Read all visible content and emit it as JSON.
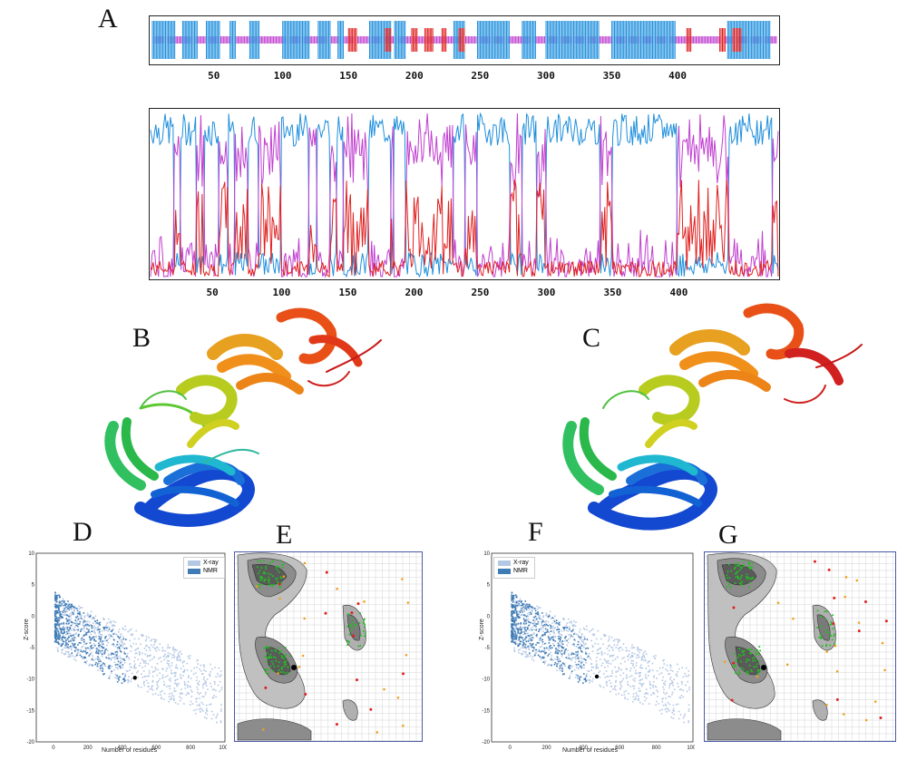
{
  "labels": {
    "A": "A",
    "B": "B",
    "C": "C",
    "D": "D",
    "E": "E",
    "F": "F",
    "G": "G"
  },
  "colors": {
    "helix": "#1f8fdc",
    "coil": "#c03fd0",
    "strand": "#e02020",
    "xray": "#b4c8e4",
    "nmr": "#3f7bb5"
  },
  "chart_data": [
    {
      "panel": "A-top",
      "type": "table",
      "xticks": [
        "50",
        "100",
        "150",
        "200",
        "250",
        "300",
        "350",
        "400"
      ],
      "xlim": [
        1,
        475
      ],
      "helix_segments": [
        [
          1,
          18
        ],
        [
          24,
          35
        ],
        [
          42,
          52
        ],
        [
          60,
          64
        ],
        [
          75,
          82
        ],
        [
          100,
          120
        ],
        [
          127,
          136
        ],
        [
          142,
          146
        ],
        [
          166,
          182
        ],
        [
          185,
          193
        ],
        [
          230,
          238
        ],
        [
          248,
          272
        ],
        [
          282,
          292
        ],
        [
          300,
          340
        ],
        [
          350,
          398
        ],
        [
          438,
          470
        ]
      ],
      "strand_segments": [
        [
          150,
          156
        ],
        [
          178,
          182
        ],
        [
          198,
          202
        ],
        [
          208,
          214
        ],
        [
          221,
          224
        ],
        [
          234,
          238
        ],
        [
          407,
          410
        ],
        [
          432,
          436
        ],
        [
          442,
          448
        ]
      ]
    },
    {
      "panel": "A-bottom",
      "type": "line",
      "xticks": [
        "50",
        "100",
        "150",
        "200",
        "250",
        "300",
        "350",
        "400"
      ],
      "xlim": [
        1,
        475
      ],
      "ylim": [
        0,
        1
      ],
      "series": [
        {
          "color": "#1f8fdc"
        },
        {
          "color": "#c03fd0"
        },
        {
          "color": "#e02020"
        }
      ]
    },
    {
      "panel": "D",
      "type": "scatter",
      "ylabel": "Z-score",
      "xlabel": "Number of residues",
      "xlim": [
        -100,
        1000
      ],
      "ylim": [
        -20,
        10
      ],
      "xticks": [
        "0",
        "200",
        "400",
        "600",
        "800",
        "1000"
      ],
      "yticks": [
        "10",
        "5",
        "0",
        "-5",
        "-10",
        "-15",
        "-20"
      ],
      "legend": [
        "X-ray",
        "NMR"
      ],
      "legend_position": "top-right",
      "marker": {
        "x": 475,
        "y": -9.8
      }
    },
    {
      "panel": "F",
      "type": "scatter",
      "ylabel": "Z-score",
      "xlabel": "Number of residues",
      "xlim": [
        -100,
        1000
      ],
      "ylim": [
        -20,
        10
      ],
      "xticks": [
        "0",
        "200",
        "400",
        "600",
        "800",
        "1000"
      ],
      "yticks": [
        "10",
        "5",
        "0",
        "-5",
        "-10",
        "-15",
        "-20"
      ],
      "legend": [
        "X-ray",
        "NMR"
      ],
      "legend_position": "top-right",
      "marker": {
        "x": 475,
        "y": -9.6
      }
    }
  ]
}
